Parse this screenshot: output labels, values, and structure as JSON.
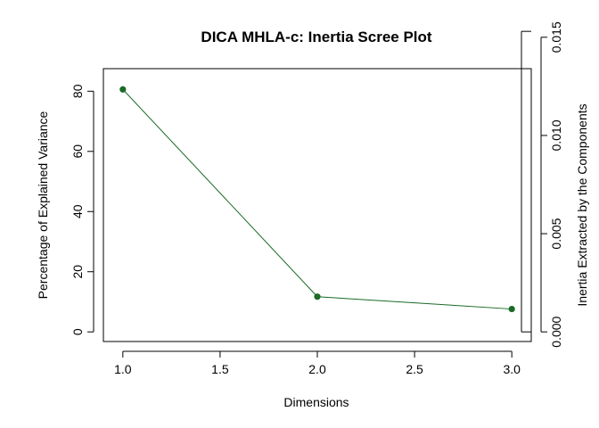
{
  "chart_data": {
    "type": "line",
    "title": "DICA MHLA-c: Inertia Scree Plot",
    "xlabel": "Dimensions",
    "ylabel": "Percentage of Explained Variance",
    "y2label": "Inertia Extracted by the Components",
    "x": [
      1,
      2,
      3
    ],
    "series": [
      {
        "values": [
          80.6,
          11.7,
          7.6
        ]
      }
    ],
    "xlim": [
      0.9,
      3.1
    ],
    "ylim": [
      -3.2,
      87.5
    ],
    "xticks": [
      "1.0",
      "1.5",
      "2.0",
      "2.5",
      "3.0"
    ],
    "xtick_values": [
      1.0,
      1.5,
      2.0,
      2.5,
      3.0
    ],
    "yticks": [
      "0",
      "20",
      "40",
      "60",
      "80"
    ],
    "ytick_values": [
      0,
      20,
      40,
      60,
      80
    ],
    "y2ticks": [
      "0.000",
      "0.005",
      "0.010",
      "0.015"
    ],
    "y2tick_values": [
      0.0,
      0.005,
      0.01,
      0.015
    ],
    "y2_range": [
      0.0,
      0.0153
    ],
    "grid": false,
    "colors": {
      "series": "#1a6b26",
      "axes": "#000000"
    }
  }
}
